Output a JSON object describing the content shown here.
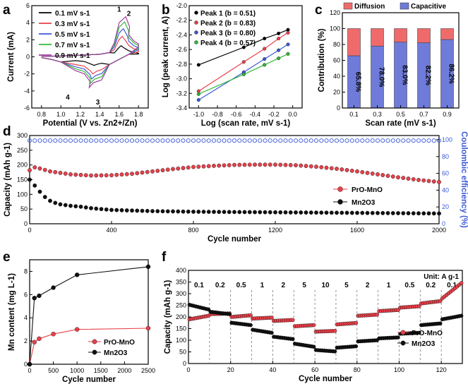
{
  "panel_labels": [
    "a",
    "b",
    "c",
    "d",
    "e",
    "f"
  ],
  "chart_data": [
    {
      "id": "a",
      "type": "line",
      "title": "",
      "xlabel": "Potential (V vs. Zn2+/Zn)",
      "ylabel": "Current (mA)",
      "xlim": [
        0.7,
        1.9
      ],
      "ylim": [
        -6,
        6
      ],
      "xticks": [
        "0.8",
        "1.0",
        "1.2",
        "1.4",
        "1.6",
        "1.8"
      ],
      "yticks": [
        "-6",
        "-4",
        "-2",
        "0",
        "2",
        "4",
        "6"
      ],
      "series": [
        {
          "name": "0.1 mV s-1",
          "color": "#000000",
          "peak_ox": 1.3,
          "peak_red": -1.0
        },
        {
          "name": "0.3 mV s-1",
          "color": "#e8404a",
          "peak_ox": 2.4,
          "peak_red": -2.0
        },
        {
          "name": "0.5 mV s-1",
          "color": "#3c5ad8",
          "peak_ox": 3.3,
          "peak_red": -2.6
        },
        {
          "name": "0.7 mV s-1",
          "color": "#35b838",
          "peak_ox": 4.1,
          "peak_red": -3.1
        },
        {
          "name": "0.9 mV s-1",
          "color": "#a13ea1",
          "peak_ox": 4.7,
          "peak_red": -3.6
        }
      ],
      "annotations": [
        "1",
        "2",
        "3",
        "4"
      ]
    },
    {
      "id": "b",
      "type": "line",
      "xlabel": "Log (scan rate, mV s-1)",
      "ylabel": "Log (peak current, A)",
      "xlim": [
        -1.1,
        0.1
      ],
      "ylim": [
        -3.4,
        -2.0
      ],
      "xticks": [
        "-1.0",
        "-0.8",
        "-0.6",
        "-0.4",
        "-0.2",
        "0.0"
      ],
      "yticks": [
        "-2.0",
        "-2.2",
        "-2.4",
        "-2.6",
        "-2.8",
        "-3.0",
        "-3.2",
        "-3.4"
      ],
      "x": [
        -1.0,
        -0.52,
        -0.3,
        -0.15,
        -0.05
      ],
      "series": [
        {
          "name": "Peak 1 (b = 0.51)",
          "color": "#000000",
          "values": [
            -2.81,
            -2.57,
            -2.45,
            -2.38,
            -2.33
          ]
        },
        {
          "name": "Peak 2 (b = 0.83)",
          "color": "#e8404a",
          "values": [
            -3.17,
            -2.77,
            -2.59,
            -2.45,
            -2.37
          ]
        },
        {
          "name": "Peak 3 (b = 0.80)",
          "color": "#3c5ad8",
          "values": [
            -3.29,
            -2.91,
            -2.73,
            -2.61,
            -2.53
          ]
        },
        {
          "name": "Peak 4 (b = 0.57)",
          "color": "#35b838",
          "values": [
            -3.21,
            -2.94,
            -2.81,
            -2.72,
            -2.66
          ]
        }
      ]
    },
    {
      "id": "c",
      "type": "bar",
      "xlabel": "Scan rate (mV s-1)",
      "ylabel": "Contribution (%)",
      "ylim": [
        0,
        120
      ],
      "yticks": [
        "0",
        "20",
        "40",
        "60",
        "80",
        "100",
        "120"
      ],
      "categories": [
        "0.1",
        "0.3",
        "0.5",
        "0.7",
        "0.9"
      ],
      "series": [
        {
          "name": "Capacitive",
          "color": "#6f7bd9",
          "values": [
            65.8,
            78.0,
            83.0,
            82.2,
            86.2
          ]
        },
        {
          "name": "Diffusion",
          "color": "#ef6b6b",
          "values": [
            34.2,
            22.0,
            17.0,
            17.8,
            13.8
          ]
        }
      ],
      "data_labels": [
        "65.8%",
        "78.0%",
        "83.0%",
        "82.2%",
        "86.2%"
      ]
    },
    {
      "id": "d",
      "type": "scatter",
      "xlabel": "Cycle number",
      "ylabel": "Capacity (mAh g-1)",
      "y2label": "Coulombic efficiency (%)",
      "xlim": [
        0,
        2000
      ],
      "ylim": [
        0,
        300
      ],
      "y2lim": [
        0,
        105
      ],
      "xticks": [
        "0",
        "400",
        "800",
        "1200",
        "1600",
        "2000"
      ],
      "yticks": [
        "0",
        "50",
        "100",
        "150",
        "200",
        "250",
        "300"
      ],
      "y2ticks": [
        "0",
        "20",
        "40",
        "60",
        "80",
        "100"
      ],
      "series": [
        {
          "name": "PrO-MnO",
          "color": "#e8404a",
          "x": [
            0,
            15,
            40,
            100,
            200,
            300,
            400,
            500,
            600,
            700,
            800,
            900,
            1000,
            1100,
            1200,
            1300,
            1400,
            1500,
            1600,
            1700,
            1800,
            1900,
            2000
          ],
          "values": [
            182,
            193,
            190,
            178,
            168,
            164,
            165,
            170,
            178,
            186,
            193,
            197,
            200,
            201,
            201,
            199,
            194,
            187,
            178,
            168,
            158,
            149,
            142
          ]
        },
        {
          "name": "Mn2O3",
          "color": "#111111",
          "x": [
            0,
            15,
            40,
            60,
            80,
            100,
            120,
            150,
            200,
            250,
            300,
            400,
            500,
            600,
            800,
            1000,
            1200,
            1400,
            1600,
            1800,
            2000
          ],
          "values": [
            150,
            138,
            118,
            100,
            88,
            78,
            72,
            66,
            61,
            58,
            53,
            47,
            45,
            43,
            41,
            40,
            39,
            38,
            37,
            36,
            35
          ]
        },
        {
          "name": "Coulombic efficiency",
          "color": "#3c5ad8",
          "axis": "y2",
          "x": [
            0,
            2000
          ],
          "values": [
            99,
            99
          ]
        }
      ]
    },
    {
      "id": "e",
      "type": "line",
      "xlabel": "Cycle number",
      "ylabel": "Mn content (mg L-1)",
      "xlim": [
        0,
        2500
      ],
      "ylim": [
        0,
        9
      ],
      "xticks": [
        "0",
        "500",
        "1000",
        "1500",
        "2000",
        "2500"
      ],
      "yticks": [
        "0",
        "2",
        "4",
        "6",
        "8"
      ],
      "series": [
        {
          "name": "PrO-MnO",
          "color": "#e8404a",
          "x": [
            0,
            100,
            200,
            500,
            1000,
            2500
          ],
          "values": [
            0,
            1.9,
            2.2,
            2.6,
            3.0,
            3.1
          ]
        },
        {
          "name": "Mn2O3",
          "color": "#111111",
          "x": [
            0,
            100,
            200,
            500,
            1000,
            2500
          ],
          "values": [
            0,
            5.7,
            5.9,
            6.6,
            7.7,
            8.4
          ]
        }
      ]
    },
    {
      "id": "f",
      "type": "scatter",
      "xlabel": "Cycle number",
      "ylabel": "Capacity (mAh g-1)",
      "xlim": [
        0,
        130
      ],
      "ylim": [
        0,
        400
      ],
      "xticks": [
        "0",
        "20",
        "40",
        "60",
        "80",
        "100",
        "120"
      ],
      "yticks": [
        "0",
        "50",
        "100",
        "150",
        "200",
        "250",
        "300",
        "350",
        "400"
      ],
      "unit_label": "Unit: A g-1",
      "rate_labels": [
        "0.1",
        "0.2",
        "0.5",
        "1",
        "2",
        "5",
        "10",
        "5",
        "2",
        "1",
        "0.5",
        "0.2",
        "0.1"
      ],
      "separators": [
        10,
        20,
        30,
        40,
        50,
        60,
        70,
        80,
        90,
        100,
        110,
        120
      ],
      "series": [
        {
          "name": "PrO-MnO",
          "color": "#e8404a",
          "segments": [
            [
              190,
              205
            ],
            [
              212,
              215
            ],
            [
              200,
              207
            ],
            [
              193,
              197
            ],
            [
              183,
              187
            ],
            [
              160,
              165
            ],
            [
              137,
              140
            ],
            [
              168,
              174
            ],
            [
              205,
              210
            ],
            [
              225,
              230
            ],
            [
              240,
              246
            ],
            [
              258,
              268
            ],
            [
              280,
              345
            ]
          ]
        },
        {
          "name": "Mn2O3",
          "color": "#111111",
          "segments": [
            [
              252,
              232
            ],
            [
              222,
              212
            ],
            [
              175,
              165
            ],
            [
              145,
              132
            ],
            [
              115,
              105
            ],
            [
              85,
              72
            ],
            [
              58,
              52
            ],
            [
              68,
              74
            ],
            [
              95,
              100
            ],
            [
              108,
              112
            ],
            [
              128,
              132
            ],
            [
              165,
              172
            ],
            [
              190,
              205
            ]
          ]
        }
      ]
    }
  ]
}
